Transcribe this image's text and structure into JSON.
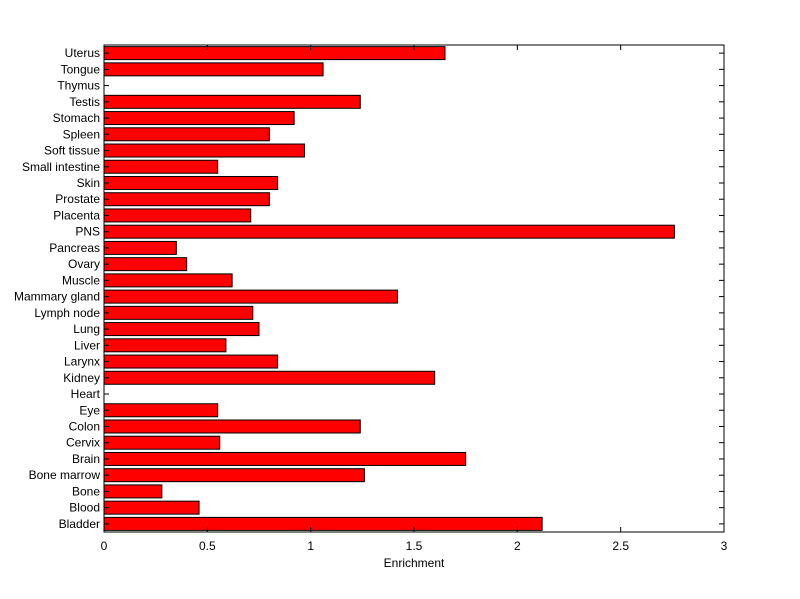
{
  "chart_data": {
    "type": "bar",
    "orientation": "horizontal",
    "title": "",
    "xlabel": "Enrichment",
    "ylabel": "",
    "xlim": [
      0,
      3
    ],
    "xticks": [
      0,
      0.5,
      1,
      1.5,
      2,
      2.5,
      3
    ],
    "xtick_labels": [
      "0",
      "0.5",
      "1",
      "1.5",
      "2",
      "2.5",
      "3"
    ],
    "grid": false,
    "legend": "none",
    "bar_color": "#ff0000",
    "categories": [
      "Bladder",
      "Blood",
      "Bone",
      "Bone marrow",
      "Brain",
      "Cervix",
      "Colon",
      "Eye",
      "Heart",
      "Kidney",
      "Larynx",
      "Liver",
      "Lung",
      "Lymph node",
      "Mammary gland",
      "Muscle",
      "Ovary",
      "Pancreas",
      "PNS",
      "Placenta",
      "Prostate",
      "Skin",
      "Small intestine",
      "Soft tissue",
      "Spleen",
      "Stomach",
      "Testis",
      "Thymus",
      "Tongue",
      "Uterus"
    ],
    "values": [
      2.12,
      0.46,
      0.28,
      1.26,
      1.75,
      0.56,
      1.24,
      0.55,
      0,
      1.6,
      0.84,
      0.59,
      0.75,
      0.72,
      1.42,
      0.62,
      0.4,
      0.35,
      2.76,
      0.71,
      0.8,
      0.84,
      0.55,
      0.97,
      0.8,
      0.92,
      1.24,
      0,
      1.06,
      1.65
    ]
  }
}
